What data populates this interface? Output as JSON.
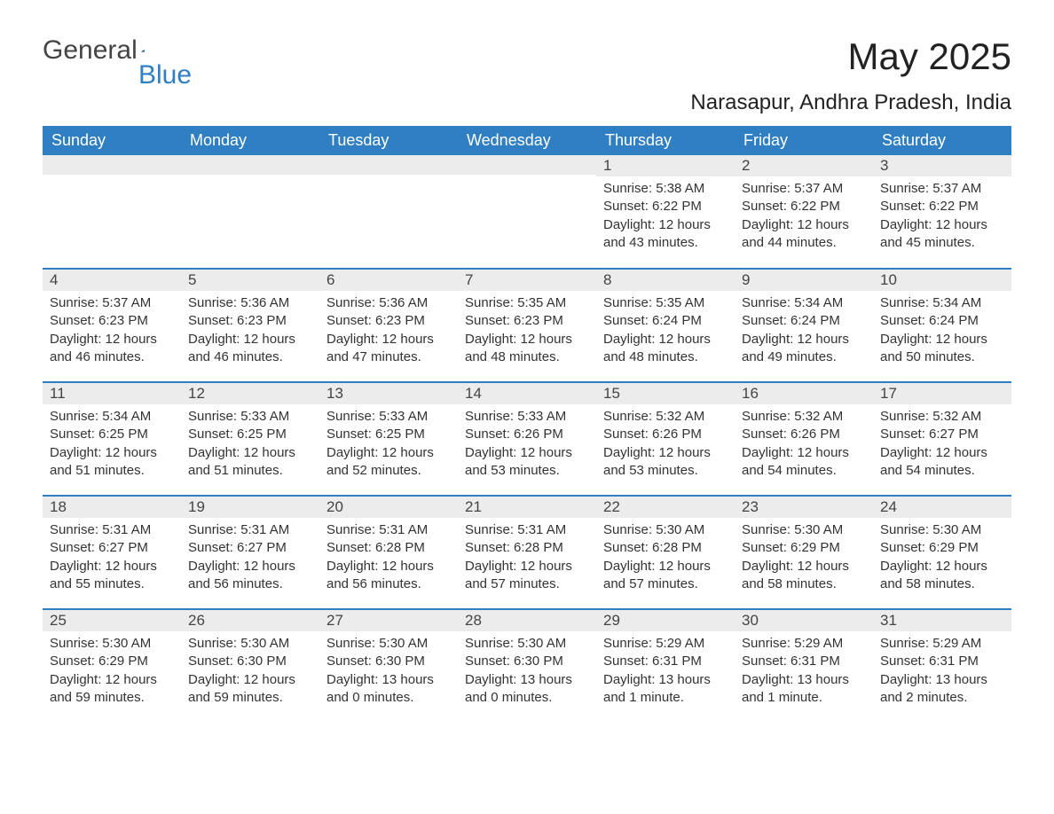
{
  "brand": {
    "word1": "General",
    "word2": "Blue"
  },
  "title": "May 2025",
  "location": "Narasapur, Andhra Pradesh, India",
  "colors": {
    "header_bg": "#2f7fc2",
    "header_text": "#ffffff",
    "daynum_bg": "#ececec",
    "border": "#2f7fc2",
    "text": "#333333",
    "page_bg": "#ffffff"
  },
  "typography": {
    "title_fontsize": 42,
    "location_fontsize": 24,
    "header_fontsize": 18,
    "daynum_fontsize": 17,
    "body_fontsize": 15
  },
  "weekday_labels": [
    "Sunday",
    "Monday",
    "Tuesday",
    "Wednesday",
    "Thursday",
    "Friday",
    "Saturday"
  ],
  "weeks": [
    [
      null,
      null,
      null,
      null,
      {
        "n": "1",
        "sunrise": "Sunrise: 5:38 AM",
        "sunset": "Sunset: 6:22 PM",
        "daylight": "Daylight: 12 hours and 43 minutes."
      },
      {
        "n": "2",
        "sunrise": "Sunrise: 5:37 AM",
        "sunset": "Sunset: 6:22 PM",
        "daylight": "Daylight: 12 hours and 44 minutes."
      },
      {
        "n": "3",
        "sunrise": "Sunrise: 5:37 AM",
        "sunset": "Sunset: 6:22 PM",
        "daylight": "Daylight: 12 hours and 45 minutes."
      }
    ],
    [
      {
        "n": "4",
        "sunrise": "Sunrise: 5:37 AM",
        "sunset": "Sunset: 6:23 PM",
        "daylight": "Daylight: 12 hours and 46 minutes."
      },
      {
        "n": "5",
        "sunrise": "Sunrise: 5:36 AM",
        "sunset": "Sunset: 6:23 PM",
        "daylight": "Daylight: 12 hours and 46 minutes."
      },
      {
        "n": "6",
        "sunrise": "Sunrise: 5:36 AM",
        "sunset": "Sunset: 6:23 PM",
        "daylight": "Daylight: 12 hours and 47 minutes."
      },
      {
        "n": "7",
        "sunrise": "Sunrise: 5:35 AM",
        "sunset": "Sunset: 6:23 PM",
        "daylight": "Daylight: 12 hours and 48 minutes."
      },
      {
        "n": "8",
        "sunrise": "Sunrise: 5:35 AM",
        "sunset": "Sunset: 6:24 PM",
        "daylight": "Daylight: 12 hours and 48 minutes."
      },
      {
        "n": "9",
        "sunrise": "Sunrise: 5:34 AM",
        "sunset": "Sunset: 6:24 PM",
        "daylight": "Daylight: 12 hours and 49 minutes."
      },
      {
        "n": "10",
        "sunrise": "Sunrise: 5:34 AM",
        "sunset": "Sunset: 6:24 PM",
        "daylight": "Daylight: 12 hours and 50 minutes."
      }
    ],
    [
      {
        "n": "11",
        "sunrise": "Sunrise: 5:34 AM",
        "sunset": "Sunset: 6:25 PM",
        "daylight": "Daylight: 12 hours and 51 minutes."
      },
      {
        "n": "12",
        "sunrise": "Sunrise: 5:33 AM",
        "sunset": "Sunset: 6:25 PM",
        "daylight": "Daylight: 12 hours and 51 minutes."
      },
      {
        "n": "13",
        "sunrise": "Sunrise: 5:33 AM",
        "sunset": "Sunset: 6:25 PM",
        "daylight": "Daylight: 12 hours and 52 minutes."
      },
      {
        "n": "14",
        "sunrise": "Sunrise: 5:33 AM",
        "sunset": "Sunset: 6:26 PM",
        "daylight": "Daylight: 12 hours and 53 minutes."
      },
      {
        "n": "15",
        "sunrise": "Sunrise: 5:32 AM",
        "sunset": "Sunset: 6:26 PM",
        "daylight": "Daylight: 12 hours and 53 minutes."
      },
      {
        "n": "16",
        "sunrise": "Sunrise: 5:32 AM",
        "sunset": "Sunset: 6:26 PM",
        "daylight": "Daylight: 12 hours and 54 minutes."
      },
      {
        "n": "17",
        "sunrise": "Sunrise: 5:32 AM",
        "sunset": "Sunset: 6:27 PM",
        "daylight": "Daylight: 12 hours and 54 minutes."
      }
    ],
    [
      {
        "n": "18",
        "sunrise": "Sunrise: 5:31 AM",
        "sunset": "Sunset: 6:27 PM",
        "daylight": "Daylight: 12 hours and 55 minutes."
      },
      {
        "n": "19",
        "sunrise": "Sunrise: 5:31 AM",
        "sunset": "Sunset: 6:27 PM",
        "daylight": "Daylight: 12 hours and 56 minutes."
      },
      {
        "n": "20",
        "sunrise": "Sunrise: 5:31 AM",
        "sunset": "Sunset: 6:28 PM",
        "daylight": "Daylight: 12 hours and 56 minutes."
      },
      {
        "n": "21",
        "sunrise": "Sunrise: 5:31 AM",
        "sunset": "Sunset: 6:28 PM",
        "daylight": "Daylight: 12 hours and 57 minutes."
      },
      {
        "n": "22",
        "sunrise": "Sunrise: 5:30 AM",
        "sunset": "Sunset: 6:28 PM",
        "daylight": "Daylight: 12 hours and 57 minutes."
      },
      {
        "n": "23",
        "sunrise": "Sunrise: 5:30 AM",
        "sunset": "Sunset: 6:29 PM",
        "daylight": "Daylight: 12 hours and 58 minutes."
      },
      {
        "n": "24",
        "sunrise": "Sunrise: 5:30 AM",
        "sunset": "Sunset: 6:29 PM",
        "daylight": "Daylight: 12 hours and 58 minutes."
      }
    ],
    [
      {
        "n": "25",
        "sunrise": "Sunrise: 5:30 AM",
        "sunset": "Sunset: 6:29 PM",
        "daylight": "Daylight: 12 hours and 59 minutes."
      },
      {
        "n": "26",
        "sunrise": "Sunrise: 5:30 AM",
        "sunset": "Sunset: 6:30 PM",
        "daylight": "Daylight: 12 hours and 59 minutes."
      },
      {
        "n": "27",
        "sunrise": "Sunrise: 5:30 AM",
        "sunset": "Sunset: 6:30 PM",
        "daylight": "Daylight: 13 hours and 0 minutes."
      },
      {
        "n": "28",
        "sunrise": "Sunrise: 5:30 AM",
        "sunset": "Sunset: 6:30 PM",
        "daylight": "Daylight: 13 hours and 0 minutes."
      },
      {
        "n": "29",
        "sunrise": "Sunrise: 5:29 AM",
        "sunset": "Sunset: 6:31 PM",
        "daylight": "Daylight: 13 hours and 1 minute."
      },
      {
        "n": "30",
        "sunrise": "Sunrise: 5:29 AM",
        "sunset": "Sunset: 6:31 PM",
        "daylight": "Daylight: 13 hours and 1 minute."
      },
      {
        "n": "31",
        "sunrise": "Sunrise: 5:29 AM",
        "sunset": "Sunset: 6:31 PM",
        "daylight": "Daylight: 13 hours and 2 minutes."
      }
    ]
  ]
}
